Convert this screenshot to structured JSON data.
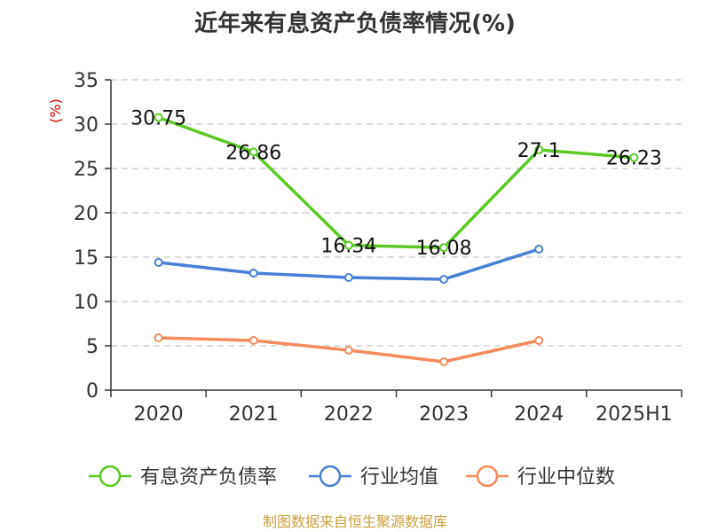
{
  "chart_data": {
    "type": "line",
    "title": "近年来有息资产负债率情况(%)",
    "ylabel": "(%)",
    "xlabel": "",
    "categories": [
      "2020",
      "2021",
      "2022",
      "2023",
      "2024",
      "2025H1"
    ],
    "ylim": [
      0,
      35
    ],
    "yticks": [
      0,
      5,
      10,
      15,
      20,
      25,
      30,
      35
    ],
    "grid": true,
    "legend_position": "bottom",
    "series": [
      {
        "name": "有息资产负债率",
        "color": "#5cc823",
        "values": [
          30.75,
          26.86,
          16.34,
          16.08,
          27.1,
          26.23
        ],
        "labels": [
          "30.75",
          "26.86",
          "16.34",
          "16.08",
          "27.1",
          "26.23"
        ]
      },
      {
        "name": "行业均值",
        "color": "#4a7fd6",
        "values": [
          14.4,
          13.2,
          12.7,
          12.5,
          15.9,
          null
        ],
        "labels": []
      },
      {
        "name": "行业中位数",
        "color": "#f58b5b",
        "values": [
          5.9,
          5.6,
          4.5,
          3.2,
          5.6,
          null
        ],
        "labels": []
      }
    ],
    "source": "制图数据来自恒生聚源数据库"
  }
}
